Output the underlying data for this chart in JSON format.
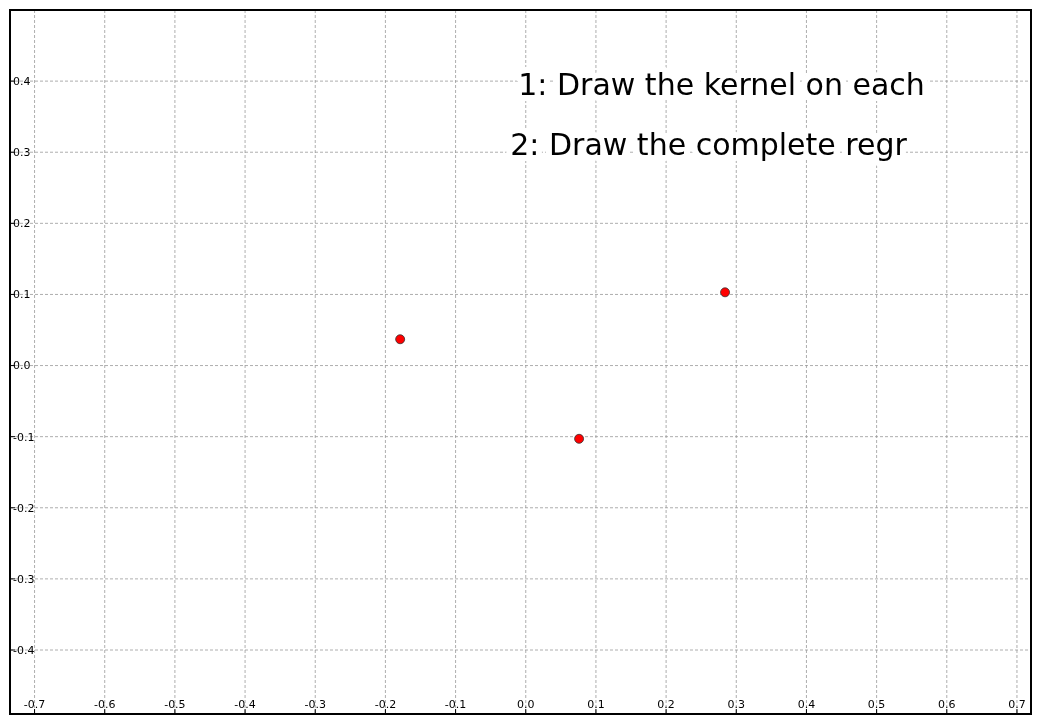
{
  "chart_data": {
    "type": "scatter",
    "x": [
      -0.179,
      0.076,
      0.284
    ],
    "values": [
      0.037,
      -0.103,
      0.103
    ],
    "color": "#ff0000",
    "marker": "circle",
    "xlim": [
      -0.735,
      0.72
    ],
    "ylim": [
      -0.49,
      0.5
    ],
    "xticks": [
      -0.7,
      -0.6,
      -0.5,
      -0.4,
      -0.3,
      -0.2,
      -0.1,
      {
        "value": 0,
        "label": "0.0"
      },
      0.1,
      0.2,
      0.3,
      0.4,
      0.5,
      0.6,
      0.7
    ],
    "yticks": [
      -0.4,
      -0.3,
      -0.2,
      -0.1,
      {
        "value": 0,
        "label": "0.0"
      },
      0.1,
      0.2,
      0.3,
      0.4
    ],
    "grid": true,
    "annotations": [
      "1: Draw the kernel on each",
      "2: Draw the complete regr"
    ]
  }
}
